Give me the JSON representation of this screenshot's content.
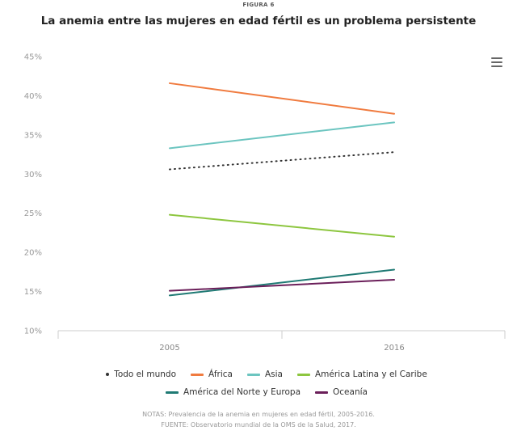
{
  "header": {
    "kicker": "FIGURA 6",
    "title": "La anemia entre las mujeres en edad fértil es un problema persistente"
  },
  "menu_icon": "hamburger-menu-icon",
  "chart_data": {
    "type": "line",
    "x": [
      "2005",
      "2016"
    ],
    "yticks": [
      "10%",
      "15%",
      "20%",
      "25%",
      "30%",
      "35%",
      "40%",
      "45%"
    ],
    "ylim": [
      10,
      45
    ],
    "ylabel": "",
    "xlabel": "",
    "legend_position": "bottom",
    "grid": false,
    "series": [
      {
        "name": "Todo el mundo",
        "values": [
          30.6,
          32.8
        ],
        "color": "#333333",
        "dashed": true
      },
      {
        "name": "África",
        "values": [
          41.6,
          37.7
        ],
        "color": "#f07b3f",
        "dashed": false
      },
      {
        "name": "Asia",
        "values": [
          33.3,
          36.6
        ],
        "color": "#6cc5c0",
        "dashed": false
      },
      {
        "name": "América Latina y el Caribe",
        "values": [
          24.8,
          22.0
        ],
        "color": "#8dc63f",
        "dashed": false
      },
      {
        "name": "América del Norte y Europa",
        "values": [
          14.5,
          17.8
        ],
        "color": "#1f7a74",
        "dashed": false
      },
      {
        "name": "Oceanía",
        "values": [
          15.1,
          16.5
        ],
        "color": "#6b1f5a",
        "dashed": false
      }
    ]
  },
  "legend_rows": [
    [
      0,
      1,
      2,
      3
    ],
    [
      4,
      5
    ]
  ],
  "notes": {
    "line1": "NOTAS: Prevalencia de la anemia en mujeres en edad fértil, 2005-2016.",
    "line2": "FUENTE: Observatorio mundial de la OMS de la Salud, 2017."
  }
}
